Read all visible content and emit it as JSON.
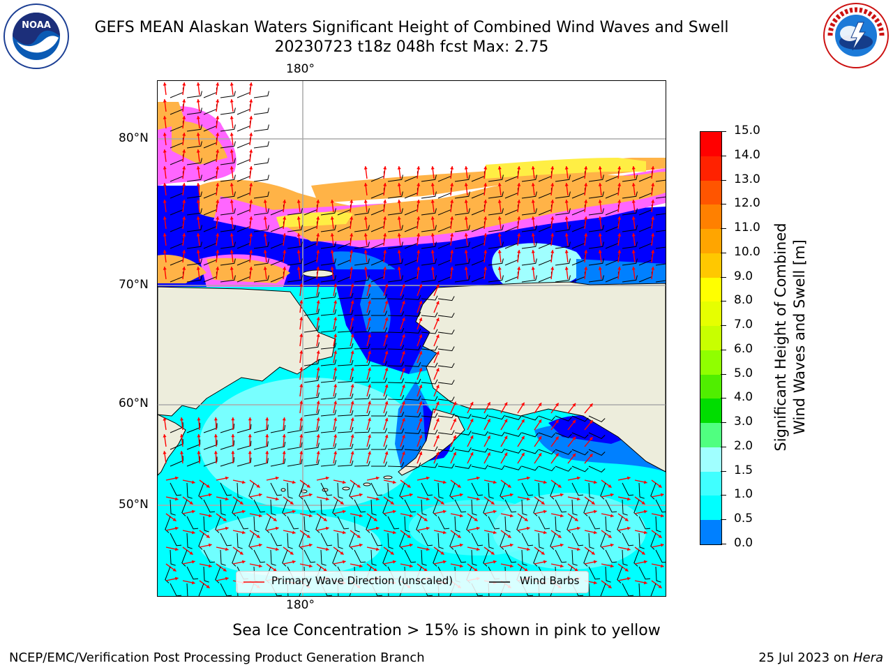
{
  "header": {
    "title_line1": "GEFS MEAN Alaskan Waters Significant Height of Combined Wind Waves and Swell",
    "title_line2": "20230723 t18z 048h fcst   Max: 2.75"
  },
  "logos": {
    "left": {
      "text": "NOAA",
      "icon": "noaa-logo"
    },
    "right": {
      "text": "NATIONAL WEATHER SERVICE",
      "icon": "nws-logo"
    }
  },
  "map": {
    "lon_top_label": "180°",
    "lon_bottom_label": "180°",
    "lat_labels": [
      "80°N",
      "70°N",
      "60°N",
      "50°N"
    ],
    "colors": {
      "land": "#ededdc",
      "ice_pink": "#ff66ff",
      "ice_orange": "#ffb347",
      "ice_yellow": "#ffee44",
      "deep_blue": "#0000ff",
      "mid_blue": "#0080ff",
      "cyan": "#00ffff",
      "light_cyan": "#a0ffff",
      "wave_arrow": "#ff0000",
      "wind_barb": "#000000"
    },
    "legend": {
      "wave_label": "Primary Wave Direction (unscaled)",
      "barb_label": "Wind Barbs"
    }
  },
  "colorbar": {
    "title": "Significant Height of Combined Wind Waves and Swell [m]",
    "title_line1": "Significant Height of Combined",
    "title_line2": "Wind Waves and Swell [m]",
    "ticks": [
      "15.0",
      "14.0",
      "13.0",
      "12.0",
      "11.0",
      "10.0",
      "9.0",
      "8.0",
      "7.0",
      "6.0",
      "5.0",
      "4.0",
      "3.0",
      "2.0",
      "1.5",
      "1.0",
      "0.5",
      "0.0"
    ],
    "colors": [
      "#ff0000",
      "#ff2200",
      "#ff5500",
      "#ff8000",
      "#ffa500",
      "#ffc800",
      "#ffff00",
      "#e6ff00",
      "#c8ff00",
      "#90ff00",
      "#50ee00",
      "#00dd00",
      "#50ff80",
      "#a0ffff",
      "#40ffff",
      "#00ffff",
      "#0080ff",
      "#0000ff"
    ]
  },
  "notes": {
    "ice_note": "Sea Ice Concentration > 15% is shown in pink to yellow"
  },
  "footer": {
    "left": "NCEP/EMC/Verification Post Processing Product Generation Branch",
    "right_date": "25 Jul 2023 on ",
    "right_host": "Hera"
  }
}
